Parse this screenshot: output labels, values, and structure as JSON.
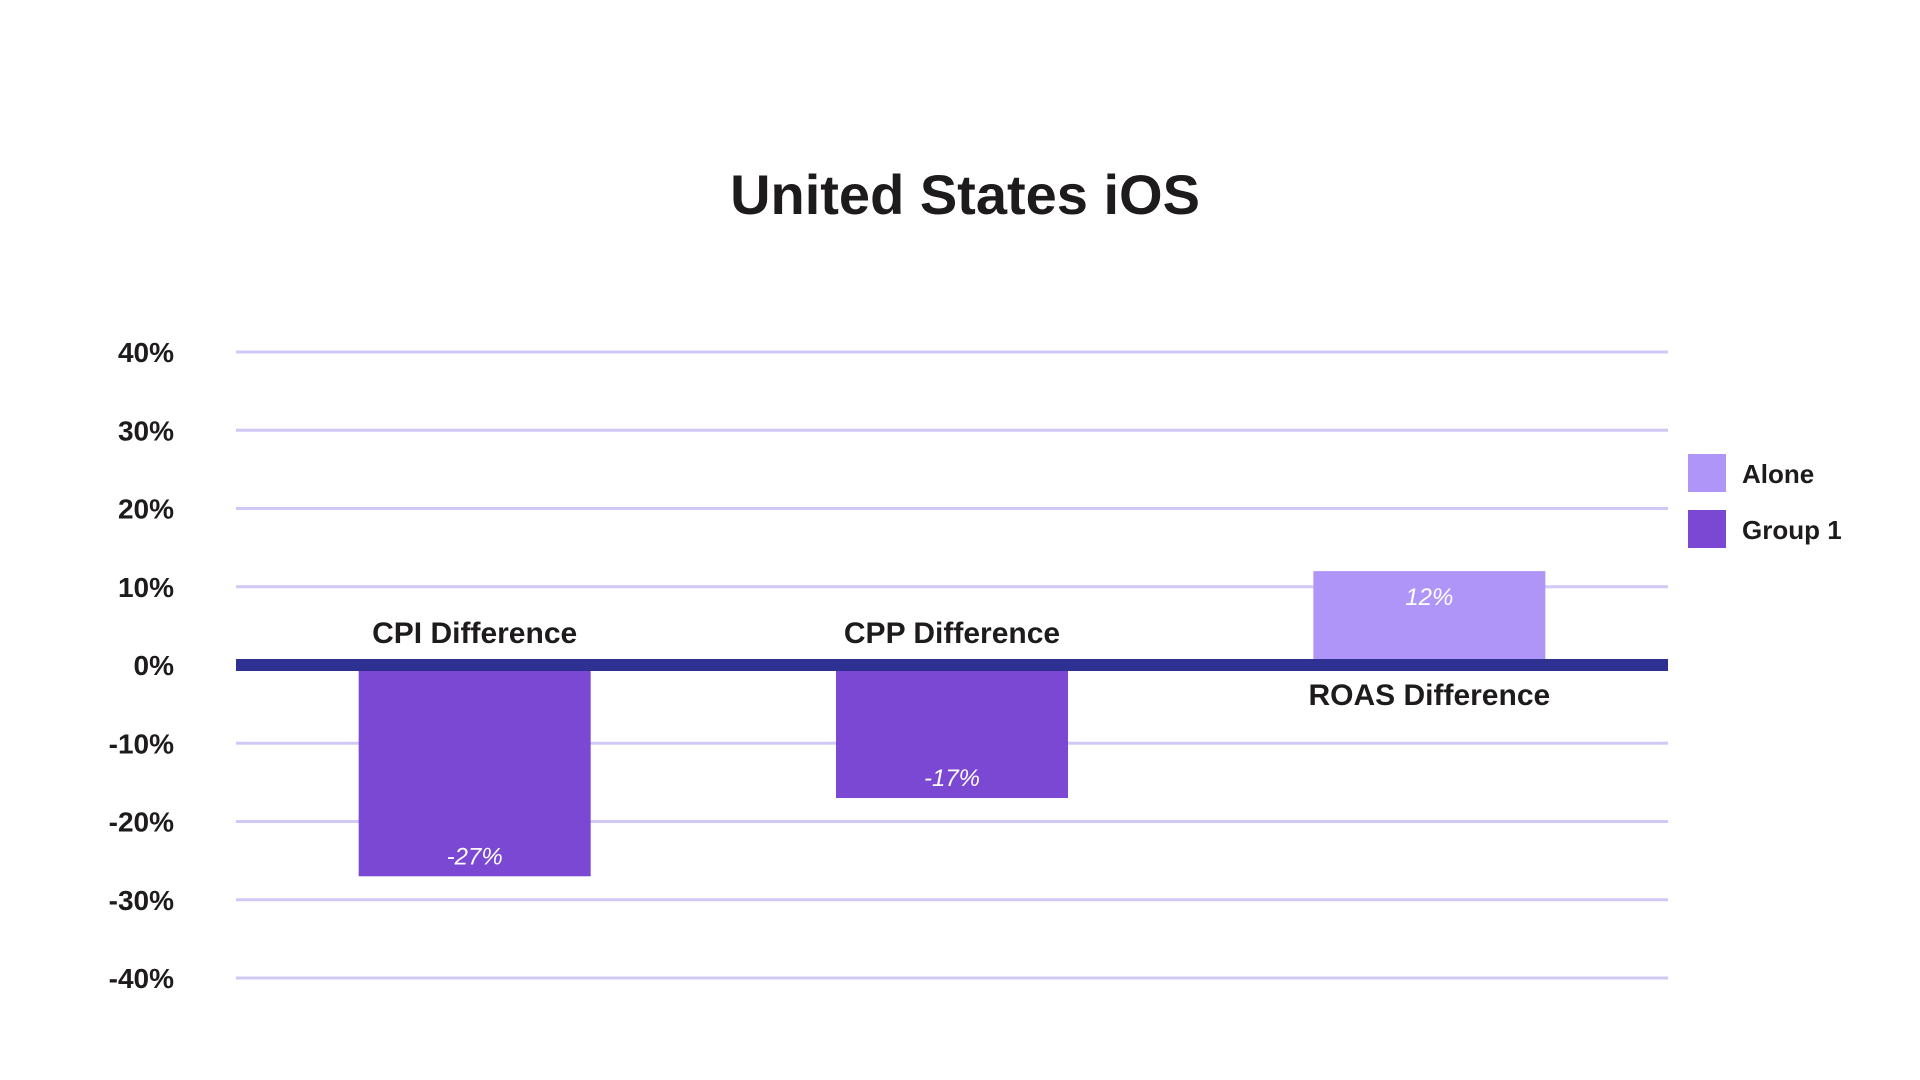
{
  "chart_data": {
    "type": "bar",
    "title": "United States iOS",
    "categories": [
      "CPI Difference",
      "CPP Difference",
      "ROAS Difference"
    ],
    "series": [
      {
        "name": "Alone",
        "values": [
          null,
          null,
          12
        ],
        "color": "#b095f9"
      },
      {
        "name": "Group 1",
        "values": [
          -27,
          -17,
          null
        ],
        "color": "#7a48d3"
      }
    ],
    "data_labels": [
      "-27%",
      "-17%",
      "12%"
    ],
    "yticks": [
      40,
      30,
      20,
      10,
      0,
      -10,
      -20,
      -30,
      -40
    ],
    "ytick_labels": [
      "40%",
      "30%",
      "20%",
      "10%",
      "0%",
      "-10%",
      "-20%",
      "-30%",
      "-40%"
    ],
    "ylim": [
      -40,
      40
    ],
    "xlabel": "",
    "ylabel": "",
    "grid": true,
    "grid_color": "#d2c8f6",
    "zero_line_color": "#2e3192",
    "legend_position": "right",
    "text_color": "#1e1b1d"
  }
}
